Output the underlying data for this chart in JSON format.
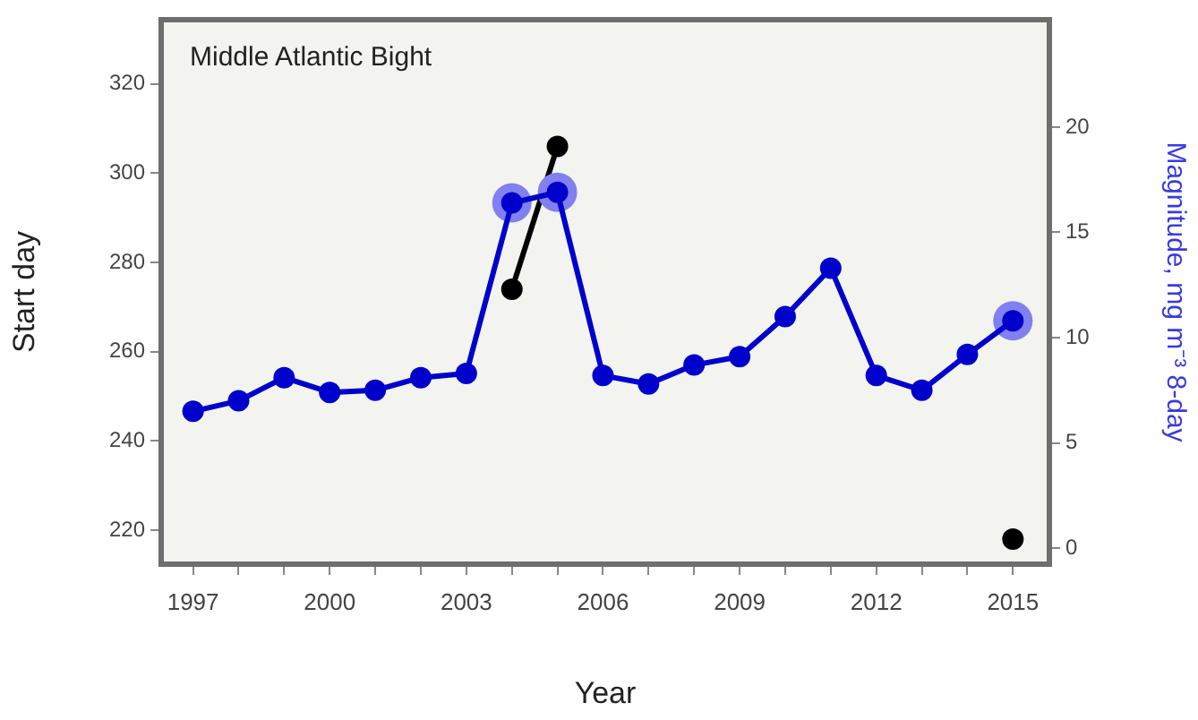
{
  "chart_data": {
    "type": "line",
    "xlabel": "Year",
    "ylabel": "Start day",
    "y2label": "Magnitude, mg m⁻³ 8-day",
    "annotations": [
      "Middle Atlantic Bight"
    ],
    "x": [
      1997,
      1998,
      1999,
      2000,
      2001,
      2002,
      2003,
      2004,
      2005,
      2006,
      2007,
      2008,
      2009,
      2010,
      2011,
      2012,
      2013,
      2014,
      2015
    ],
    "xlim": [
      1996.3,
      2015.8
    ],
    "xticks": [
      1997,
      {
        "value": 1998,
        "label": null
      },
      {
        "value": 1999,
        "label": null
      },
      2000,
      {
        "value": 2001,
        "label": null
      },
      {
        "value": 2002,
        "label": null
      },
      2003,
      {
        "value": 2004,
        "label": null
      },
      {
        "value": 2005,
        "label": null
      },
      2006,
      {
        "value": 2007,
        "label": null
      },
      {
        "value": 2008,
        "label": null
      },
      2009,
      {
        "value": 2010,
        "label": null
      },
      {
        "value": 2011,
        "label": null
      },
      2012,
      {
        "value": 2013,
        "label": null
      },
      {
        "value": 2014,
        "label": null
      },
      2015
    ],
    "ylim": [
      212.4,
      334.4
    ],
    "yticks": [
      220,
      240,
      260,
      280,
      300,
      320
    ],
    "y2lim": [
      -0.76,
      25.1
    ],
    "y2ticks": [
      0,
      5,
      10,
      15,
      20
    ],
    "legend": false,
    "marker": "circle",
    "line_style": "solid",
    "series": [
      {
        "axis": "y",
        "color": "#000000",
        "values": [
          null,
          null,
          null,
          null,
          null,
          null,
          null,
          274,
          306,
          null,
          null,
          null,
          null,
          null,
          null,
          null,
          null,
          null,
          218
        ]
      },
      {
        "type": "scatter",
        "axis": "y2",
        "color": "#8080f0",
        "values": [
          null,
          null,
          null,
          null,
          null,
          null,
          null,
          16.4,
          16.9,
          null,
          null,
          null,
          null,
          null,
          null,
          null,
          null,
          null,
          10.8
        ]
      },
      {
        "axis": "y2",
        "color": "#0000cc",
        "values": [
          6.5,
          7.0,
          8.1,
          7.4,
          7.5,
          8.1,
          8.3,
          16.4,
          16.9,
          8.2,
          7.8,
          8.7,
          9.1,
          11.0,
          13.3,
          8.2,
          7.5,
          9.2,
          10.8
        ]
      }
    ]
  }
}
